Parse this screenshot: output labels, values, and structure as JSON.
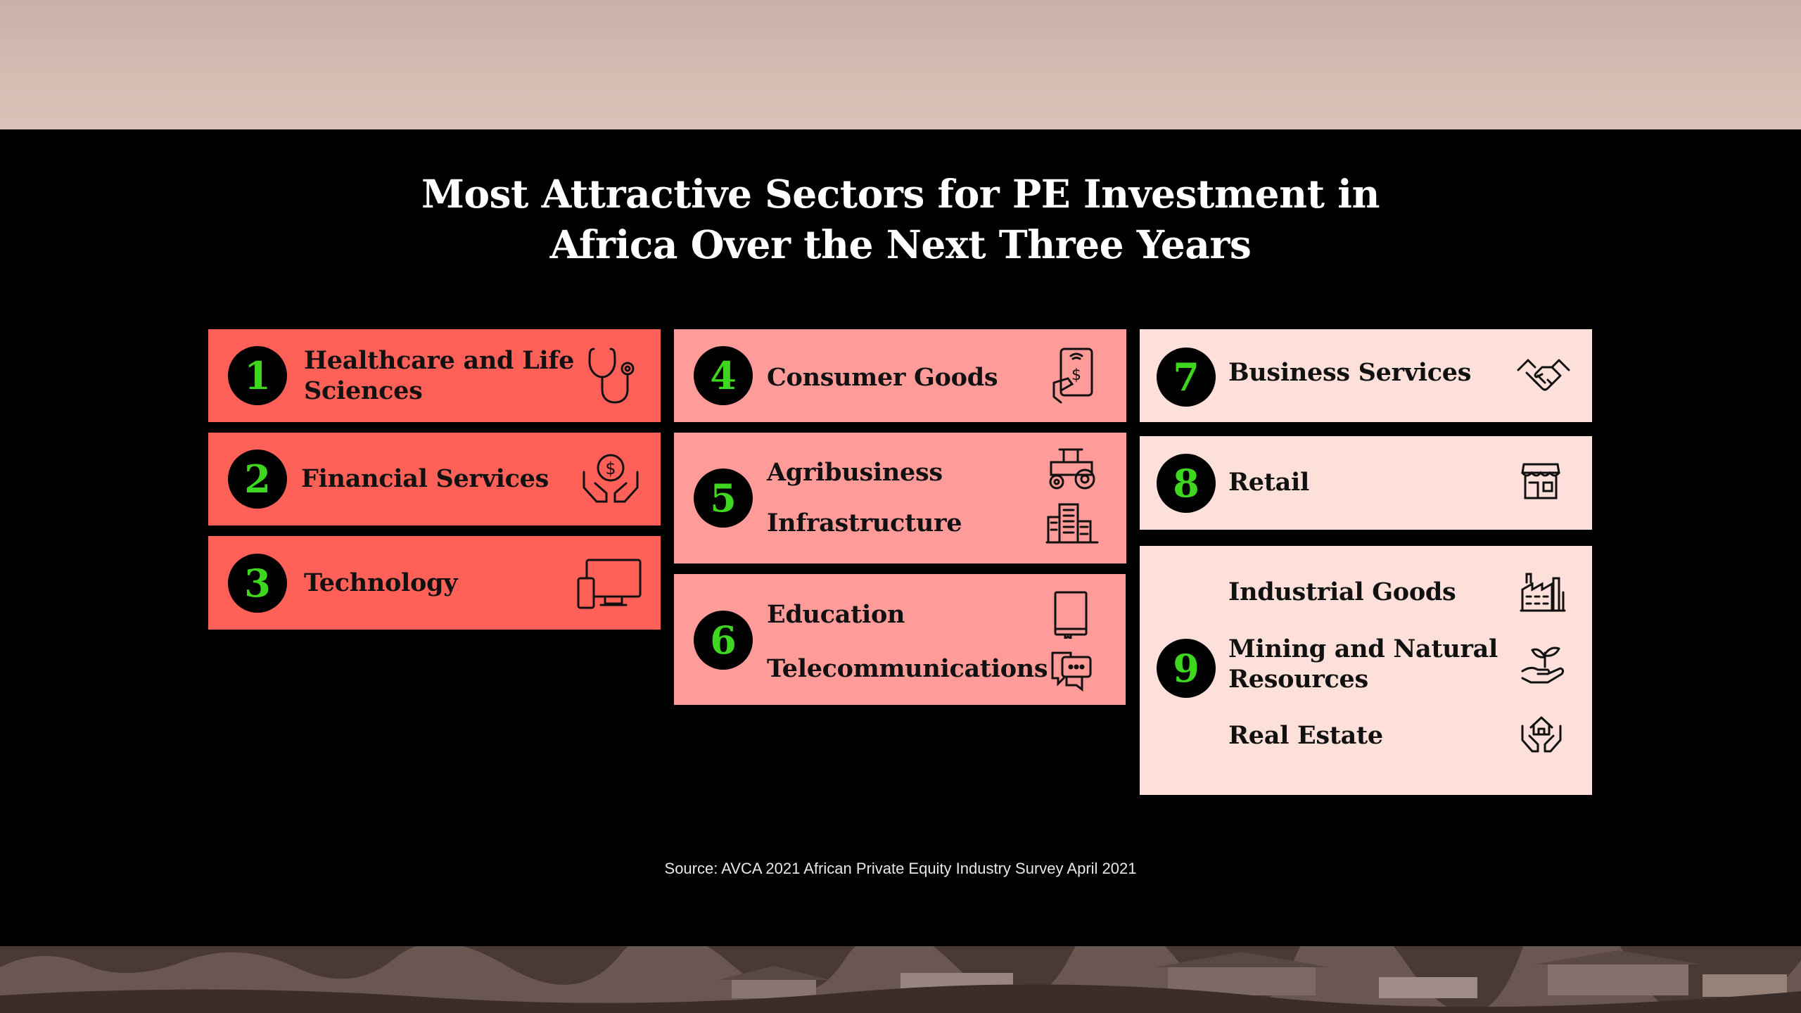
{
  "title": {
    "line1": "Most Attractive Sectors for PE Investment in",
    "line2": "Africa Over the Next Three Years"
  },
  "sectors": [
    {
      "rank": "1",
      "labels": [
        "Healthcare and Life",
        "Sciences"
      ],
      "icon": "stethoscope-icon",
      "color": "#ff6158"
    },
    {
      "rank": "2",
      "labels": [
        "Financial Services"
      ],
      "icon": "hands-coin-icon",
      "color": "#ff6158"
    },
    {
      "rank": "3",
      "labels": [
        "Technology"
      ],
      "icon": "computer-devices-icon",
      "color": "#ff6158"
    },
    {
      "rank": "4",
      "labels": [
        "Consumer Goods"
      ],
      "icon": "mobile-payment-icon",
      "color": "#ff9b98"
    },
    {
      "rank": "5",
      "labels": [
        "Agribusiness",
        "Infrastructure"
      ],
      "icons": [
        "tractor-icon",
        "buildings-icon"
      ],
      "color": "#ff9b98"
    },
    {
      "rank": "6",
      "labels": [
        "Education",
        "Telecommunications"
      ],
      "icons": [
        "book-icon",
        "chat-bubbles-icon"
      ],
      "color": "#ff9b98"
    },
    {
      "rank": "7",
      "labels": [
        "Business Services"
      ],
      "icon": "handshake-icon",
      "color": "#fde0d9"
    },
    {
      "rank": "8",
      "labels": [
        "Retail"
      ],
      "icon": "storefront-icon",
      "color": "#fde0d9"
    },
    {
      "rank": "9",
      "labels": [
        "Industrial Goods",
        "Mining and Natural",
        "Resources",
        "Real Estate"
      ],
      "icons": [
        "factory-icon",
        "plant-hand-icon",
        "house-hands-icon"
      ],
      "color": "#fde0d9"
    }
  ],
  "source": "Source: AVCA 2021 African Private Equity Industry Survey April 2021",
  "colors": {
    "badge_number": "#3ed61f",
    "background": "#000000"
  }
}
